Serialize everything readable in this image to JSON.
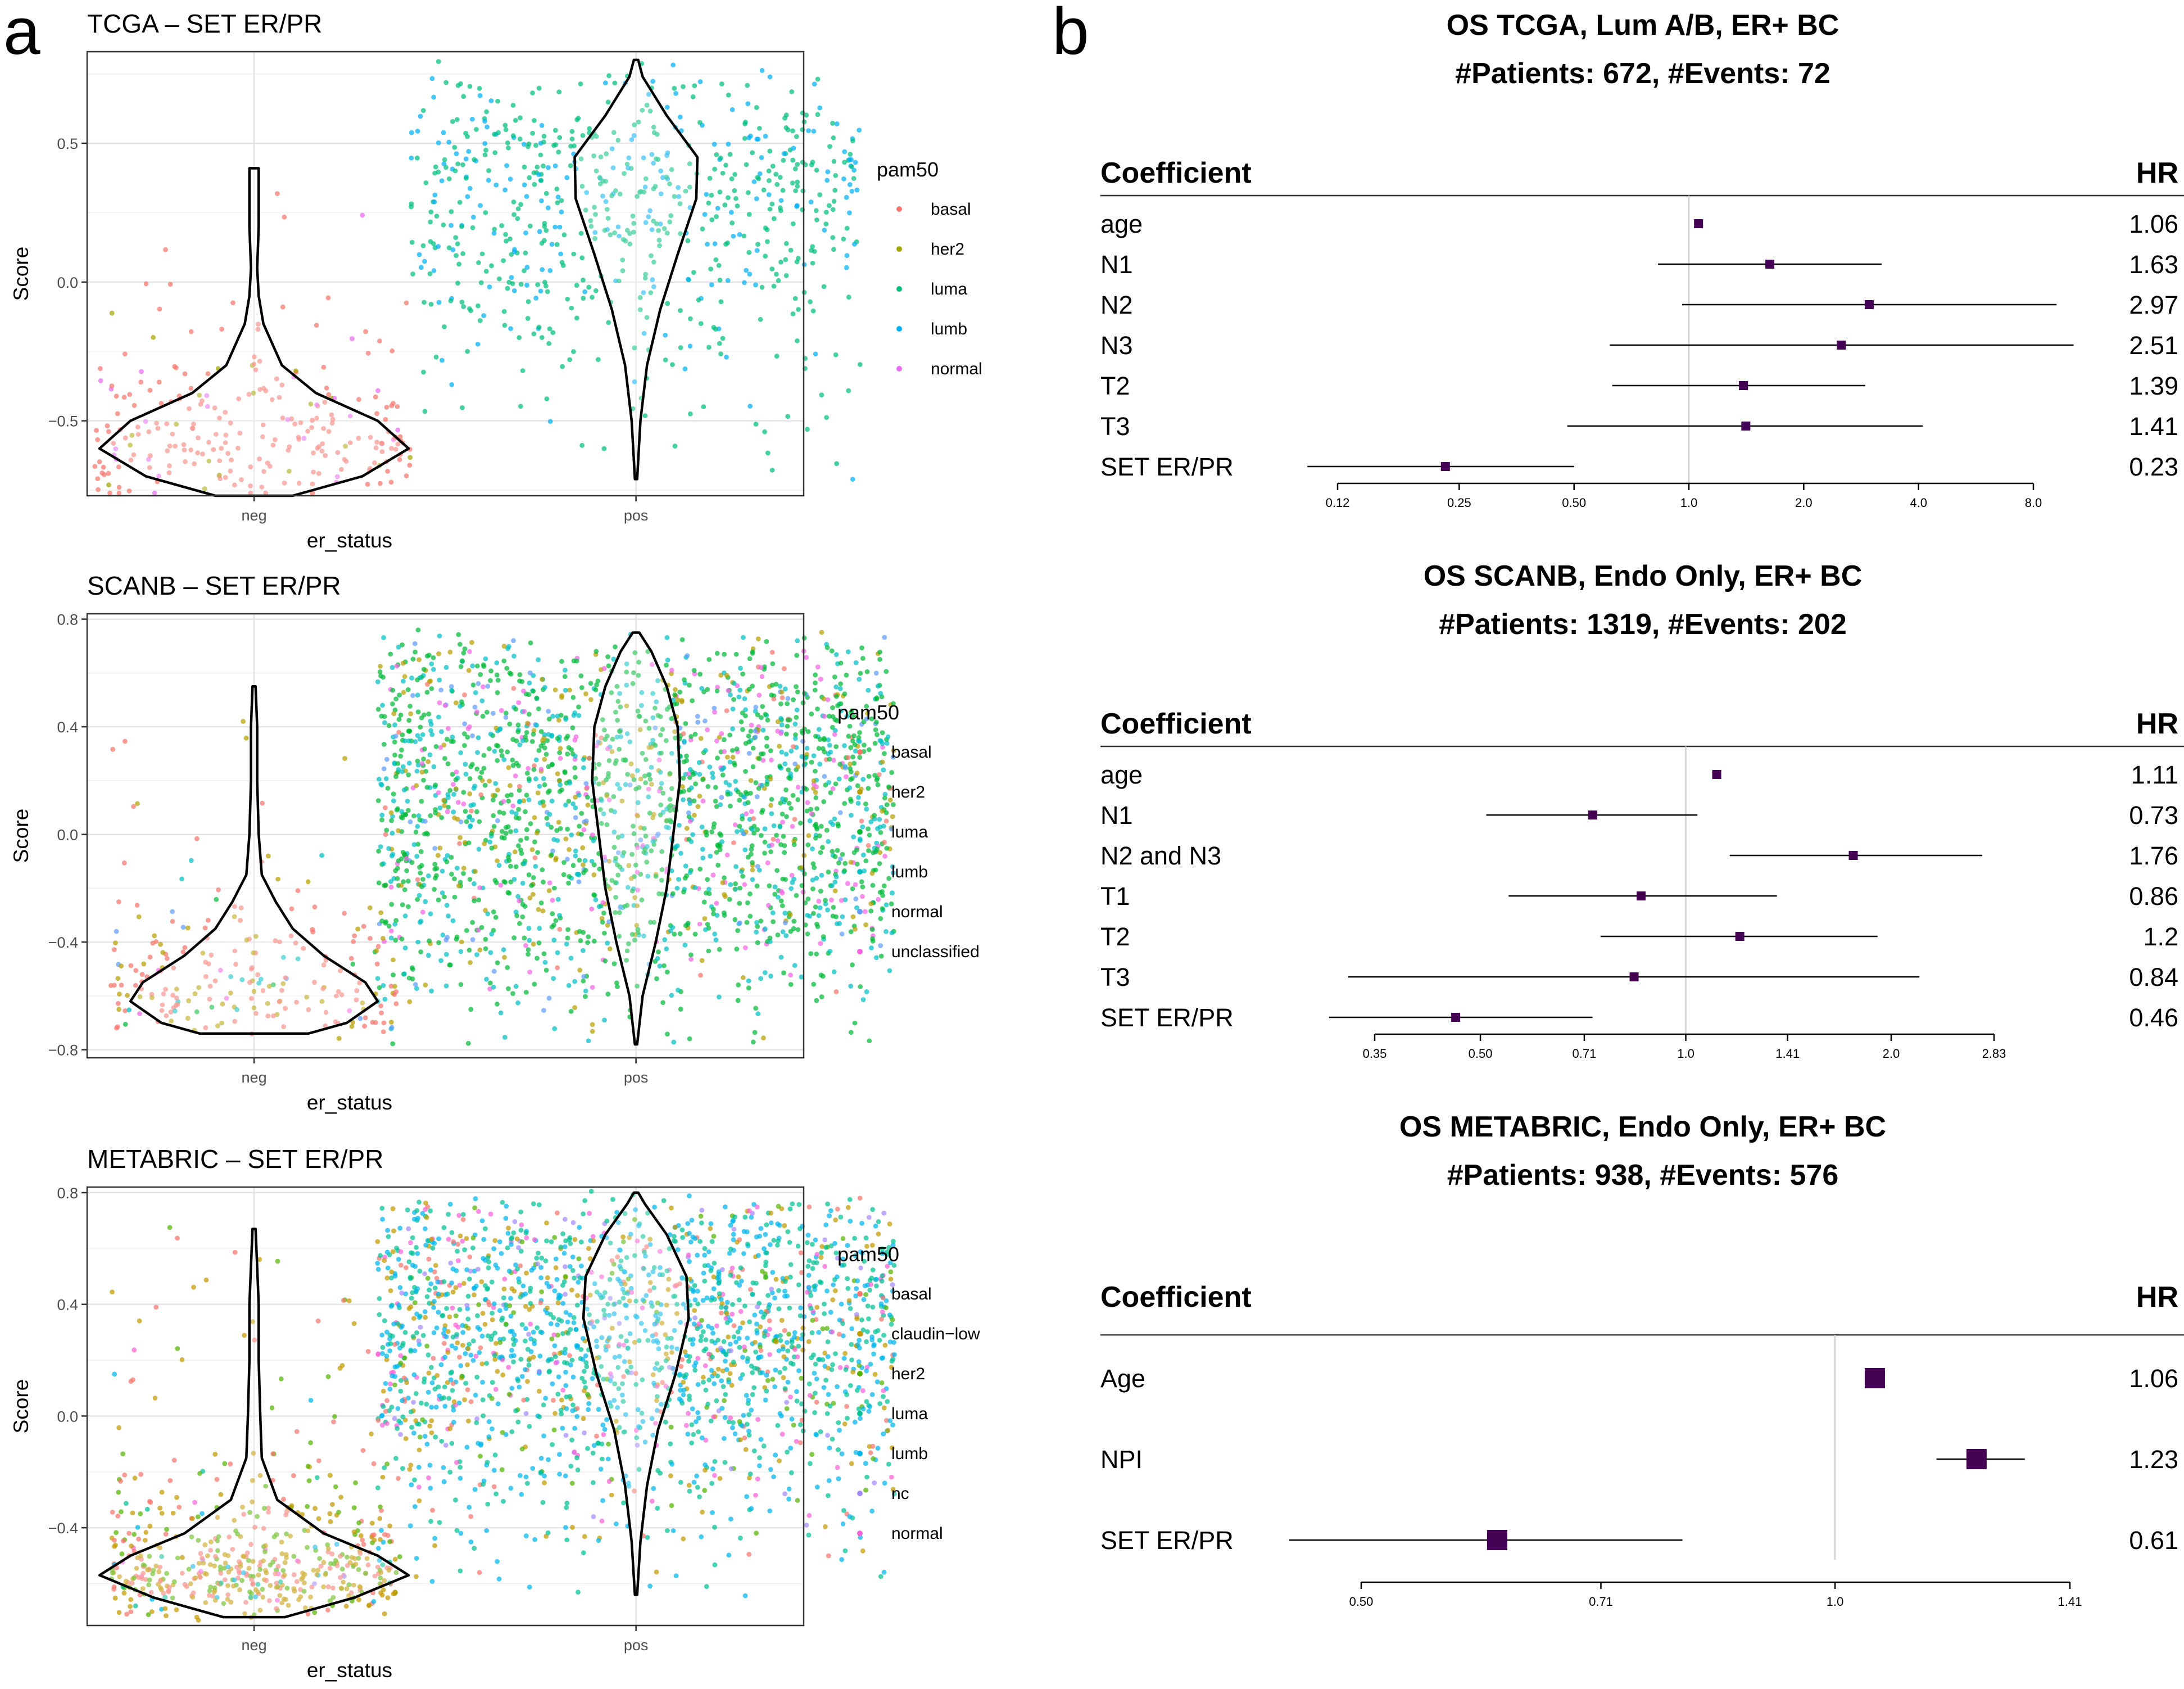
{
  "panel_labels": {
    "a": "a",
    "b": "b"
  },
  "chart_data": [
    {
      "type": "violin-strip",
      "id": "tcga",
      "title": "TCGA – SET ER/PR",
      "xlabel": "er_status",
      "ylabel": "Score",
      "categories": [
        "neg",
        "pos"
      ],
      "ylim": [
        -0.77,
        0.83
      ],
      "yticks": [
        -0.5,
        0.0,
        0.5
      ],
      "ytick_labels": [
        "−0.5",
        "0.0",
        "0.5"
      ],
      "grid": true,
      "legend": {
        "title": "pam50",
        "placement": "right",
        "entries": [
          "basal",
          "her2",
          "luma",
          "lumb",
          "normal"
        ],
        "colors": [
          "#F8766D",
          "#A3A500",
          "#00BF7D",
          "#00B0F6",
          "#E76BF3"
        ]
      }
    },
    {
      "type": "violin-strip",
      "id": "scanb",
      "title": "SCANB – SET ER/PR",
      "xlabel": "er_status",
      "ylabel": "Score",
      "categories": [
        "neg",
        "pos"
      ],
      "ylim": [
        -0.83,
        0.82
      ],
      "yticks": [
        -0.8,
        -0.4,
        0.0,
        0.4,
        0.8
      ],
      "ytick_labels": [
        "−0.8",
        "−0.4",
        "0.0",
        "0.4",
        "0.8"
      ],
      "grid": true,
      "legend": {
        "title": "pam50",
        "placement": "right",
        "entries": [
          "basal",
          "her2",
          "luma",
          "lumb",
          "normal",
          "unclassified"
        ],
        "colors": [
          "#F8766D",
          "#B79F00",
          "#00BA38",
          "#00BFC4",
          "#619CFF",
          "#F564E3"
        ]
      }
    },
    {
      "type": "violin-strip",
      "id": "metabric",
      "title": "METABRIC – SET ER/PR",
      "xlabel": "er_status",
      "ylabel": "Score",
      "categories": [
        "neg",
        "pos"
      ],
      "ylim": [
        -0.75,
        0.82
      ],
      "yticks": [
        -0.4,
        0.0,
        0.4,
        0.8
      ],
      "ytick_labels": [
        "−0.4",
        "0.0",
        "0.4",
        "0.8"
      ],
      "grid": true,
      "legend": {
        "title": "pam50",
        "placement": "right",
        "entries": [
          "basal",
          "claudin−low",
          "her2",
          "luma",
          "lumb",
          "nc",
          "normal"
        ],
        "colors": [
          "#F8766D",
          "#C49A00",
          "#53B400",
          "#00C094",
          "#00B6EB",
          "#A58AFF",
          "#FB61D7"
        ]
      }
    },
    {
      "type": "forest",
      "id": "fp_tcga",
      "title_lines": [
        "OS TCGA, Lum A/B, ER+ BC",
        "#Patients: 672, #Events: 72"
      ],
      "col_coef": "Coefficient",
      "col_hr": "HR",
      "log_scale": true,
      "xlim": [
        0.12,
        8.0
      ],
      "xticks": [
        0.12,
        0.25,
        0.5,
        1.0,
        2.0,
        4.0,
        8.0
      ],
      "xtick_labels": [
        "0.12",
        "0.25",
        "0.50",
        "1.0",
        "2.0",
        "4.0",
        "8.0"
      ],
      "rows": [
        {
          "label": "age",
          "hr_label": "1.06",
          "hr": 1.06,
          "lo": 1.04,
          "hi": 1.08
        },
        {
          "label": "N1",
          "hr_label": "1.63",
          "hr": 1.63,
          "lo": 0.83,
          "hi": 3.2
        },
        {
          "label": "N2",
          "hr_label": "2.97",
          "hr": 2.97,
          "lo": 0.96,
          "hi": 9.2
        },
        {
          "label": "N3",
          "hr_label": "2.51",
          "hr": 2.51,
          "lo": 0.62,
          "hi": 10.2
        },
        {
          "label": "T2",
          "hr_label": "1.39",
          "hr": 1.39,
          "lo": 0.63,
          "hi": 2.9
        },
        {
          "label": "T3",
          "hr_label": "1.41",
          "hr": 1.41,
          "lo": 0.48,
          "hi": 4.1
        },
        {
          "label": "SET ER/PR",
          "hr_label": "0.23",
          "hr": 0.23,
          "lo": 0.1,
          "hi": 0.5
        }
      ]
    },
    {
      "type": "forest",
      "id": "fp_scanb",
      "title_lines": [
        "OS SCANB, Endo Only, ER+ BC",
        "#Patients: 1319, #Events: 202"
      ],
      "col_coef": "Coefficient",
      "col_hr": "HR",
      "log_scale": true,
      "xlim": [
        0.35,
        2.83
      ],
      "xticks": [
        0.35,
        0.5,
        0.71,
        1.0,
        1.41,
        2.0,
        2.83
      ],
      "xtick_labels": [
        "0.35",
        "0.50",
        "0.71",
        "1.0",
        "1.41",
        "2.0",
        "2.83"
      ],
      "rows": [
        {
          "label": "age",
          "hr_label": "1.11",
          "hr": 1.11,
          "lo": 1.1,
          "hi": 1.12
        },
        {
          "label": "N1",
          "hr_label": "0.73",
          "hr": 0.73,
          "lo": 0.51,
          "hi": 1.04
        },
        {
          "label": "N2 and N3",
          "hr_label": "1.76",
          "hr": 1.76,
          "lo": 1.16,
          "hi": 2.72
        },
        {
          "label": "T1",
          "hr_label": "0.86",
          "hr": 0.86,
          "lo": 0.55,
          "hi": 1.36
        },
        {
          "label": "T2",
          "hr_label": "1.2",
          "hr": 1.2,
          "lo": 0.75,
          "hi": 1.91
        },
        {
          "label": "T3",
          "hr_label": "0.84",
          "hr": 0.84,
          "lo": 0.32,
          "hi": 2.2
        },
        {
          "label": "SET ER/PR",
          "hr_label": "0.46",
          "hr": 0.46,
          "lo": 0.3,
          "hi": 0.73
        }
      ]
    },
    {
      "type": "forest",
      "id": "fp_metabric",
      "title_lines": [
        "OS METABRIC, Endo Only, ER+ BC",
        "#Patients: 938, #Events: 576"
      ],
      "col_coef": "Coefficient",
      "col_hr": "HR",
      "log_scale": true,
      "xlim": [
        0.5,
        1.41
      ],
      "xticks": [
        0.5,
        0.71,
        1.0,
        1.41
      ],
      "xtick_labels": [
        "0.50",
        "0.71",
        "1.0",
        "1.41"
      ],
      "rows": [
        {
          "label": "Age",
          "hr_label": "1.06",
          "hr": 1.06,
          "lo": 1.05,
          "hi": 1.07
        },
        {
          "label": "NPI",
          "hr_label": "1.23",
          "hr": 1.23,
          "lo": 1.16,
          "hi": 1.32
        },
        {
          "label": "SET ER/PR",
          "hr_label": "0.61",
          "hr": 0.61,
          "lo": 0.45,
          "hi": 0.8
        }
      ]
    }
  ]
}
